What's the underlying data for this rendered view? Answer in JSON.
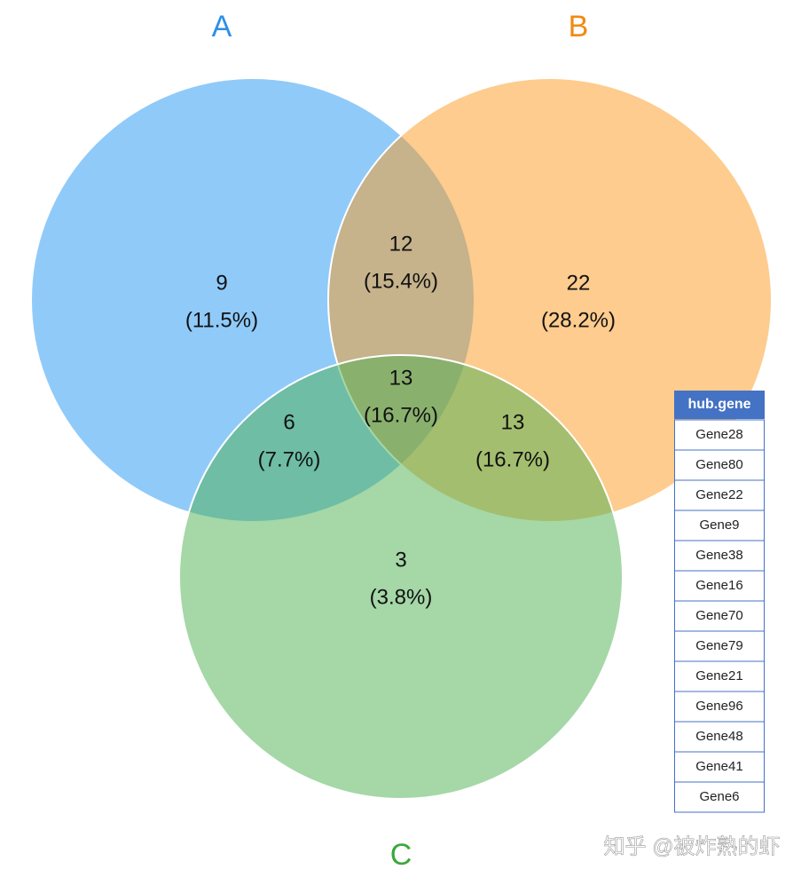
{
  "chart_data": {
    "type": "venn",
    "sets": [
      {
        "name": "A",
        "color": "#2196f3",
        "label_color": "#2e8fe8"
      },
      {
        "name": "B",
        "color": "#fb9a1e",
        "label_color": "#f08a10"
      },
      {
        "name": "C",
        "color": "#4caf50",
        "label_color": "#3aa83a"
      }
    ],
    "regions": [
      {
        "value": 9,
        "label": "(11.5%)"
      },
      {
        "value": 22,
        "label": "(28.2%)"
      },
      {
        "value": 3,
        "label": "(3.8%)"
      },
      {
        "value": 12,
        "label": "(15.4%)"
      },
      {
        "value": 6,
        "label": "(7.7%)"
      },
      {
        "value": 13,
        "label": "(16.7%)"
      },
      {
        "value": 13,
        "label": "(16.7%)"
      }
    ]
  },
  "table": {
    "header": "hub.gene",
    "rows": [
      "Gene28",
      "Gene80",
      "Gene22",
      "Gene9",
      "Gene38",
      "Gene16",
      "Gene70",
      "Gene79",
      "Gene21",
      "Gene96",
      "Gene48",
      "Gene41",
      "Gene6"
    ]
  },
  "watermark": "知乎 @被炸熟的虾"
}
